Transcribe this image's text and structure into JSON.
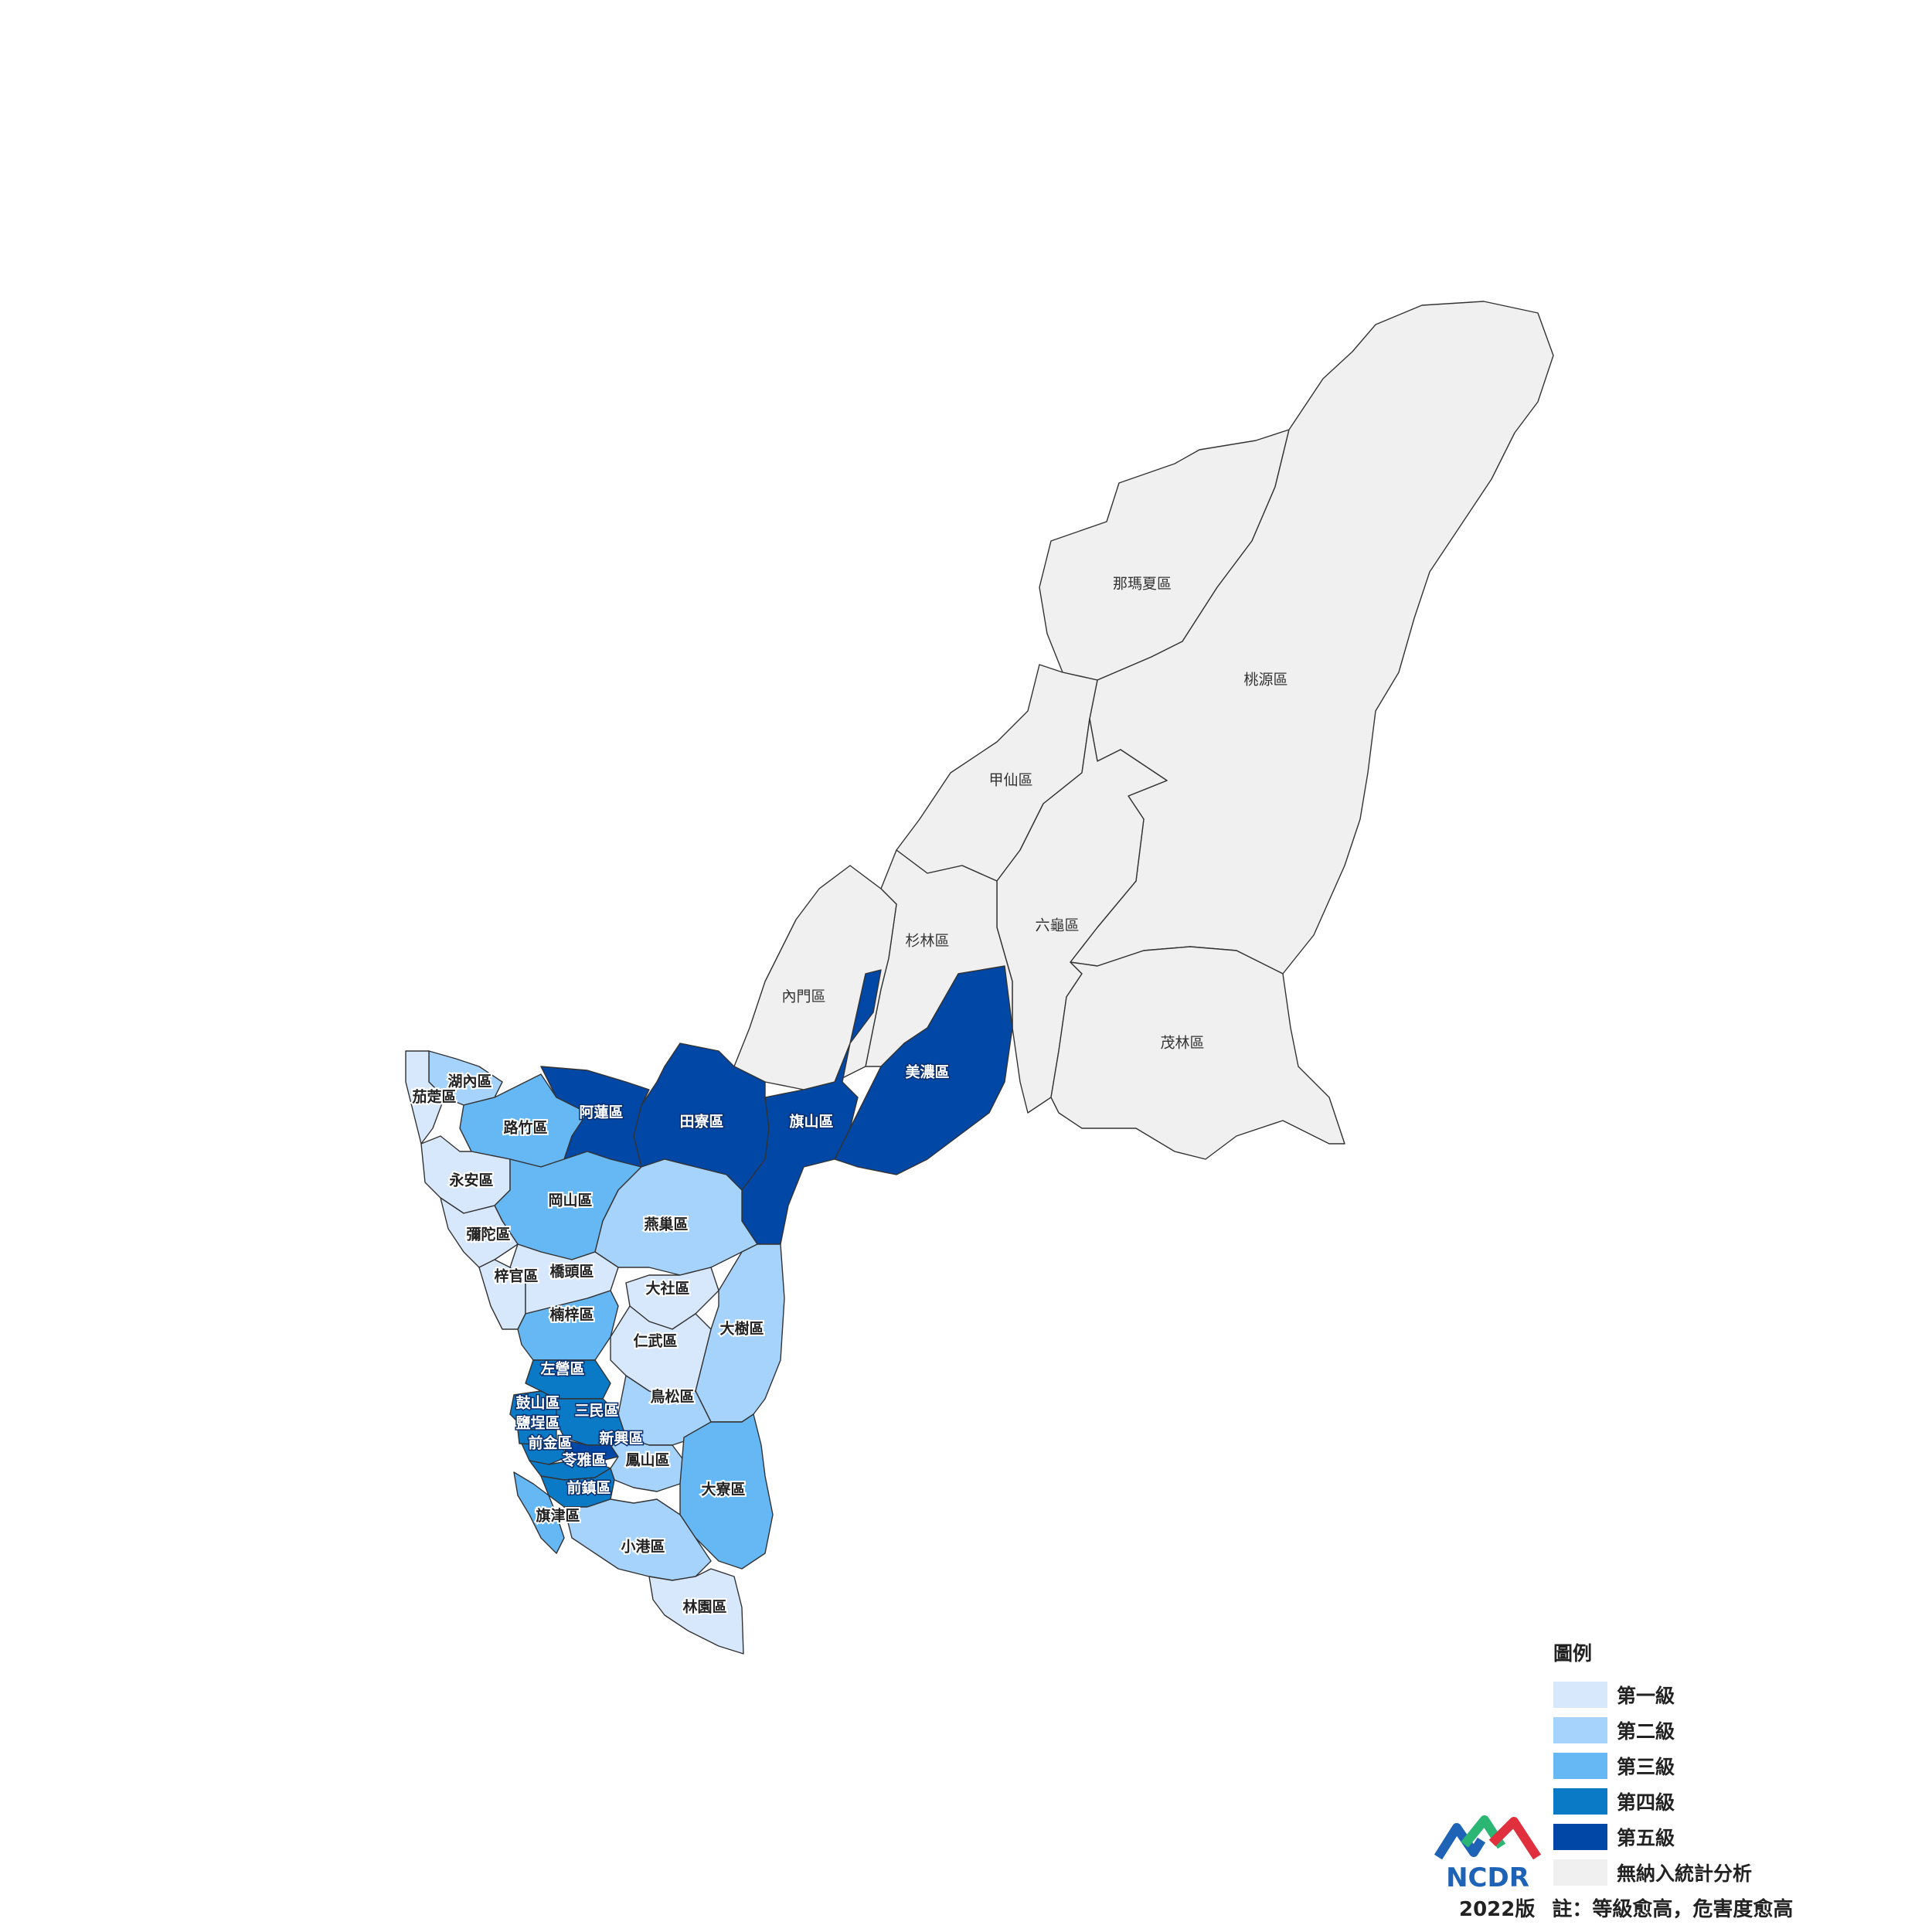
{
  "legend": {
    "title": "圖例",
    "items": [
      {
        "label": "第一級",
        "color": "#d8e8fc"
      },
      {
        "label": "第二級",
        "color": "#a6d3fb"
      },
      {
        "label": "第三級",
        "color": "#66b8f5"
      },
      {
        "label": "第四級",
        "color": "#0a79c6"
      },
      {
        "label": "第五級",
        "color": "#0147a6"
      },
      {
        "label": "無納入統計分析",
        "color": "#f0f0f0"
      }
    ]
  },
  "footer": {
    "version": "2022版",
    "note": "註：等級愈高，危害度愈高"
  },
  "logo": {
    "text": "NCDR",
    "colors": [
      "#1f63b6",
      "#2bb673",
      "#e0303e"
    ]
  },
  "districts": [
    {
      "name": "那瑪夏區",
      "level": 0
    },
    {
      "name": "桃源區",
      "level": 0
    },
    {
      "name": "甲仙區",
      "level": 0
    },
    {
      "name": "六龜區",
      "level": 0
    },
    {
      "name": "杉林區",
      "level": 0
    },
    {
      "name": "內門區",
      "level": 0
    },
    {
      "name": "茂林區",
      "level": 0
    },
    {
      "name": "美濃區",
      "level": 5
    },
    {
      "name": "旗山區",
      "level": 5
    },
    {
      "name": "田寮區",
      "level": 5
    },
    {
      "name": "阿蓮區",
      "level": 5
    },
    {
      "name": "湖內區",
      "level": 2
    },
    {
      "name": "茄萣區",
      "level": 1
    },
    {
      "name": "路竹區",
      "level": 3
    },
    {
      "name": "永安區",
      "level": 1
    },
    {
      "name": "岡山區",
      "level": 3
    },
    {
      "name": "燕巢區",
      "level": 2
    },
    {
      "name": "彌陀區",
      "level": 1
    },
    {
      "name": "梓官區",
      "level": 1
    },
    {
      "name": "橋頭區",
      "level": 1
    },
    {
      "name": "大社區",
      "level": 1
    },
    {
      "name": "楠梓區",
      "level": 3
    },
    {
      "name": "大樹區",
      "level": 2
    },
    {
      "name": "仁武區",
      "level": 1
    },
    {
      "name": "左營區",
      "level": 4
    },
    {
      "name": "鳥松區",
      "level": 2
    },
    {
      "name": "鼓山區",
      "level": 4
    },
    {
      "name": "三民區",
      "level": 4
    },
    {
      "name": "鹽埕區",
      "level": 4
    },
    {
      "name": "前金區",
      "level": 4
    },
    {
      "name": "新興區",
      "level": 5
    },
    {
      "name": "苓雅區",
      "level": 4
    },
    {
      "name": "鳳山區",
      "level": 2
    },
    {
      "name": "前鎮區",
      "level": 4
    },
    {
      "name": "大寮區",
      "level": 3
    },
    {
      "name": "旗津區",
      "level": 3
    },
    {
      "name": "小港區",
      "level": 2
    },
    {
      "name": "林園區",
      "level": 1
    }
  ]
}
